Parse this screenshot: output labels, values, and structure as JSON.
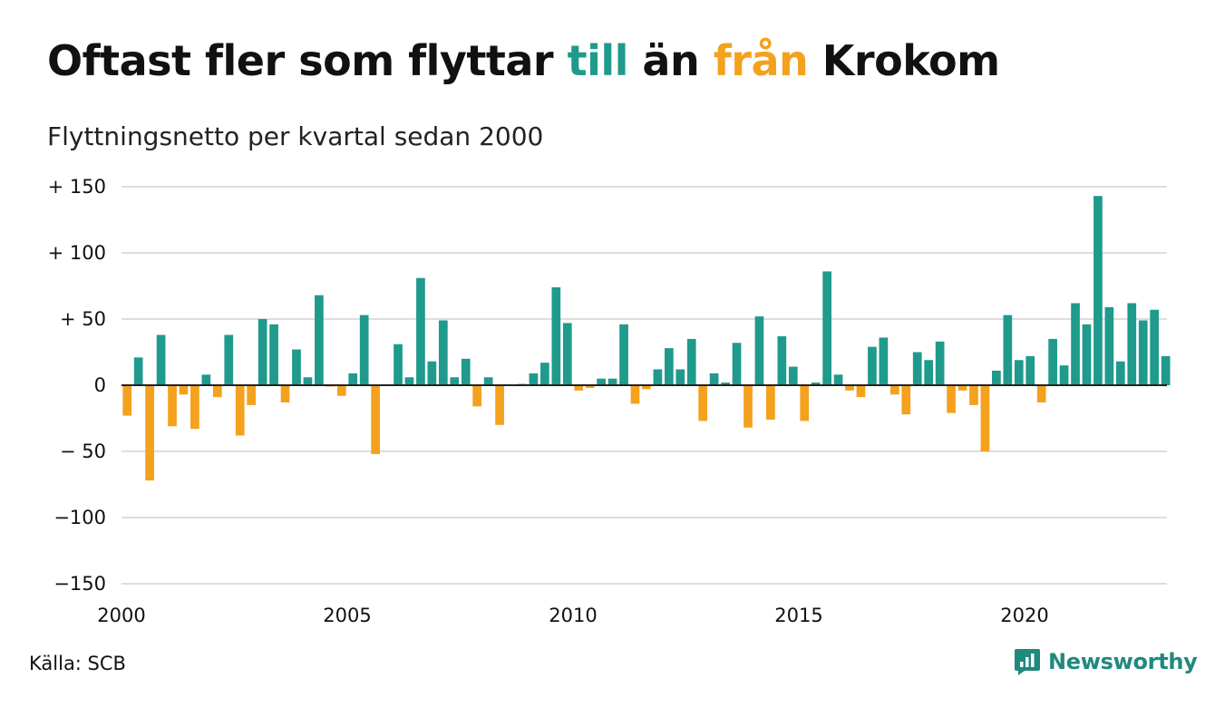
{
  "title": {
    "part1": "Oftast fler som flyttar ",
    "teal_word": "till",
    "part2": " än ",
    "orange_word": "från",
    "part3": " Krokom"
  },
  "subtitle": "Flyttningsnetto per kvartal sedan 2000",
  "source": "Källa: SCB",
  "brand": {
    "name": "Newsworthy",
    "icon": "newsworthy-logo-icon"
  },
  "colors": {
    "positive": "#1f9a8c",
    "negative": "#f4a11d",
    "grid": "#dddddd",
    "axis": "#222222"
  },
  "chart_data": {
    "type": "bar",
    "x_start": 2000,
    "x_step": 0.25,
    "ylim": [
      -150,
      150
    ],
    "yticks": [
      {
        "value": 150,
        "label": "+ 150"
      },
      {
        "value": 100,
        "label": "+ 100"
      },
      {
        "value": 50,
        "label": "+  50"
      },
      {
        "value": 0,
        "label": "0"
      },
      {
        "value": -50,
        "label": "− 50"
      },
      {
        "value": -100,
        "label": "−100"
      },
      {
        "value": -150,
        "label": "−150"
      }
    ],
    "xticks": [
      {
        "value": 2000,
        "label": "2000"
      },
      {
        "value": 2005,
        "label": "2005"
      },
      {
        "value": 2010,
        "label": "2010"
      },
      {
        "value": 2015,
        "label": "2015"
      },
      {
        "value": 2020,
        "label": "2020"
      }
    ],
    "grid": true,
    "legend": "none",
    "values": [
      -23,
      21,
      -72,
      38,
      -31,
      -7,
      -33,
      8,
      -9,
      38,
      -38,
      -15,
      50,
      46,
      -13,
      27,
      6,
      68,
      -1,
      -8,
      9,
      53,
      -52,
      0,
      31,
      6,
      81,
      18,
      49,
      6,
      20,
      -16,
      6,
      -30,
      0,
      1,
      9,
      17,
      74,
      47,
      -4,
      -2,
      5,
      5,
      46,
      -14,
      -3,
      12,
      28,
      12,
      35,
      -27,
      9,
      2,
      32,
      -32,
      52,
      -26,
      37,
      14,
      -27,
      2,
      86,
      8,
      -4,
      -9,
      29,
      36,
      -7,
      -22,
      25,
      19,
      33,
      -21,
      -4,
      -15,
      -50,
      11,
      53,
      19,
      22,
      -13,
      35,
      15,
      62,
      46,
      143,
      59,
      18,
      62,
      49,
      57,
      22
    ]
  }
}
